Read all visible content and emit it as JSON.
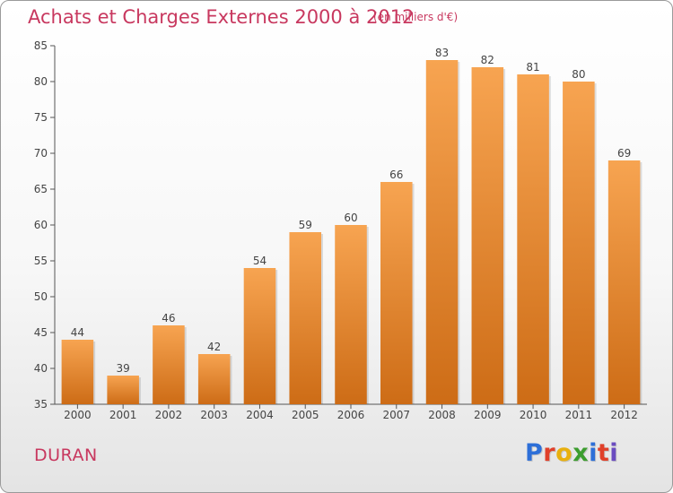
{
  "header": {
    "title": "Achats et Charges Externes 2000 à 2012",
    "unit": "(en milliers d'€)"
  },
  "footer": {
    "town": "DURAN",
    "logo_letters": [
      "P",
      "r",
      "o",
      "x",
      "i",
      "t",
      "i"
    ],
    "logo_colors": [
      "#2d6fd8",
      "#e0402a",
      "#e8b00f",
      "#3c9d2e",
      "#2d6fd8",
      "#e0402a",
      "#6a4cc0"
    ]
  },
  "chart_data": {
    "type": "bar",
    "categories": [
      "2000",
      "2001",
      "2002",
      "2003",
      "2004",
      "2005",
      "2006",
      "2007",
      "2008",
      "2009",
      "2010",
      "2011",
      "2012"
    ],
    "values": [
      44,
      39,
      46,
      42,
      54,
      59,
      60,
      66,
      83,
      82,
      81,
      80,
      69
    ],
    "title": "Achats et Charges Externes 2000 à 2012",
    "ylim": [
      35,
      85
    ],
    "yticks": [
      35,
      40,
      45,
      50,
      55,
      60,
      65,
      70,
      75,
      80,
      85
    ],
    "grid": false,
    "bar_color_top": "#f7a451",
    "bar_color_bottom": "#cd6c16",
    "axis_color": "#555555",
    "text_color": "#444444"
  }
}
